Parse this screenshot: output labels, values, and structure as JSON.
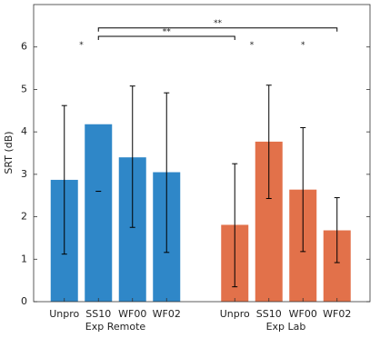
{
  "chart_data": {
    "type": "bar",
    "ylabel": "SRT (dB)",
    "categories": [
      "Unpro",
      "SS10",
      "WF00",
      "WF02",
      null,
      "Unpro",
      "SS10",
      "WF00",
      "WF02"
    ],
    "values": [
      2.87,
      4.18,
      3.4,
      3.05,
      null,
      1.81,
      3.77,
      2.64,
      1.68
    ],
    "err_low": [
      1.12,
      2.6,
      1.75,
      1.16,
      null,
      0.35,
      2.43,
      1.18,
      0.92
    ],
    "err_high": [
      4.62,
      null,
      5.08,
      4.92,
      null,
      3.25,
      5.1,
      4.1,
      2.45
    ],
    "groups": [
      {
        "label": "Exp Remote",
        "from": 0,
        "to": 3,
        "color": "#2f87c8"
      },
      {
        "label": "Exp Lab",
        "from": 5,
        "to": 8,
        "color": "#e2714a"
      }
    ],
    "ylim": [
      0,
      7
    ],
    "yticks": [
      0,
      1,
      2,
      3,
      4,
      5,
      6
    ],
    "brackets": [
      {
        "label": "**",
        "from": 1,
        "to": 8,
        "y": 6.45
      },
      {
        "label": "**",
        "from": 1,
        "to": 5,
        "y": 6.25
      }
    ],
    "stars": [
      {
        "label": "*",
        "x": 0.5,
        "y": 6.05
      },
      {
        "label": "*",
        "x": 5.5,
        "y": 6.05
      },
      {
        "label": "*",
        "x": 7,
        "y": 6.05
      }
    ]
  }
}
